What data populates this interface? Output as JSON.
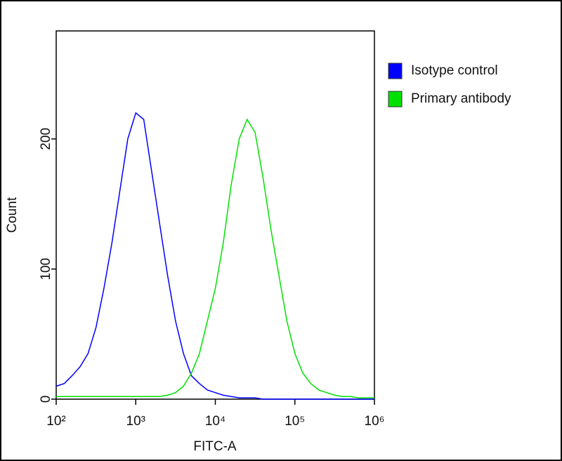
{
  "chart_data": {
    "type": "line",
    "xlabel": "FITC-A",
    "ylabel": "Count",
    "xscale": "log",
    "x": [
      100,
      126,
      158,
      200,
      251,
      316,
      398,
      501,
      631,
      794,
      1000,
      1259,
      1585,
      1995,
      2512,
      3162,
      3981,
      5012,
      6310,
      7943,
      10000,
      12589,
      15849,
      19953,
      25119,
      31623,
      39811,
      50119,
      63096,
      79433,
      100000,
      125893,
      158489,
      199526,
      251189,
      316228,
      398107,
      501187,
      630957,
      794328,
      1000000
    ],
    "series": [
      {
        "name": "Isotype control",
        "color": "#0000ff",
        "values": [
          10,
          12,
          18,
          25,
          35,
          55,
          85,
          120,
          160,
          200,
          220,
          215,
          175,
          135,
          95,
          60,
          35,
          18,
          12,
          7,
          5,
          3,
          2,
          1,
          1,
          1,
          0,
          0,
          0,
          0,
          0,
          0,
          0,
          0,
          0,
          0,
          0,
          0,
          0,
          0,
          0
        ]
      },
      {
        "name": "Primary antibody",
        "color": "#00e000",
        "values": [
          2,
          2,
          2,
          2,
          2,
          2,
          2,
          2,
          2,
          2,
          2,
          2,
          2,
          2,
          3,
          5,
          10,
          20,
          35,
          60,
          85,
          120,
          165,
          200,
          215,
          205,
          170,
          130,
          95,
          60,
          35,
          20,
          12,
          7,
          5,
          3,
          2,
          2,
          1,
          1,
          1
        ]
      }
    ],
    "xlim": [
      100,
      1000000
    ],
    "xticks": [
      {
        "value": 100,
        "label": "10²"
      },
      {
        "value": 1000,
        "label": "10³"
      },
      {
        "value": 10000,
        "label": "10⁴"
      },
      {
        "value": 100000,
        "label": "10⁵"
      },
      {
        "value": 1000000,
        "label": "10⁶"
      }
    ],
    "ylim": [
      0,
      283
    ],
    "yticks": [
      0,
      100,
      200
    ],
    "legend": "right"
  }
}
